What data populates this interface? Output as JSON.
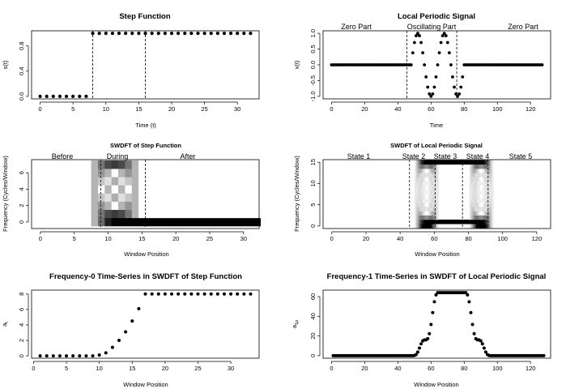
{
  "chart_data": [
    {
      "id": "p1",
      "type": "scatter",
      "title": "Step Function",
      "xlabel": "Time (t)",
      "ylabel": "s(t)",
      "xlim": [
        -1.3,
        33.3
      ],
      "ylim": [
        -0.04,
        1.04
      ],
      "xticks": [
        0,
        5,
        10,
        15,
        20,
        25,
        30
      ],
      "yticks": [
        0.0,
        0.4,
        0.8
      ],
      "series": [
        {
          "name": "s(t)",
          "x_start": 0,
          "x_end": 32,
          "step_at": 8,
          "low": 0,
          "high": 1
        }
      ],
      "vlines": [
        8,
        16
      ]
    },
    {
      "id": "p2",
      "type": "scatter",
      "title": "Local Periodic Signal",
      "xlabel": "Time",
      "ylabel": "x(t)",
      "xlim": [
        -5.1,
        132.1
      ],
      "ylim": [
        -1.08,
        1.08
      ],
      "xticks": [
        0,
        20,
        40,
        60,
        80,
        100,
        120
      ],
      "yticks": [
        -1.0,
        -0.5,
        0.0,
        0.5,
        1.0
      ],
      "series": [
        {
          "name": "x(t)",
          "x_start": 0,
          "x_end": 127,
          "osc_start": 48,
          "osc_end": 79,
          "period": 16
        }
      ],
      "vlines": [
        45.5,
        75.5
      ],
      "annotations": [
        {
          "text": "Zero Part",
          "x": 17
        },
        {
          "text": "Oscillating Part",
          "x": 62
        },
        {
          "text": "Zero Part",
          "x": 114
        }
      ]
    },
    {
      "id": "p3",
      "type": "heatmap",
      "title": "SWDFT of Step Function",
      "xlabel": "Window Position",
      "ylabel": "Frequency (Cycles/Window)",
      "xlim": [
        -1.3,
        32.3
      ],
      "ylim": [
        -0.8,
        7.6
      ],
      "xticks": [
        0,
        5,
        10,
        15,
        20,
        25,
        30
      ],
      "yticks": [
        0,
        2,
        4,
        6
      ],
      "window_size": 8,
      "n_positions": 33,
      "n_freq": 8,
      "vlines": [
        8.9,
        15.5
      ],
      "annotations": [
        {
          "text": "Before",
          "x": 3.3
        },
        {
          "text": "During",
          "x": 12.2
        },
        {
          "text": "After",
          "x": 23
        }
      ]
    },
    {
      "id": "p4",
      "type": "heatmap",
      "title": "SWDFT of Local Periodic Signal",
      "xlabel": "Window Position",
      "ylabel": "Frequency (Cycles/Window)",
      "xlim": [
        -5.1,
        128.1
      ],
      "ylim": [
        -0.6,
        15.6
      ],
      "xticks": [
        0,
        20,
        40,
        60,
        80,
        100,
        120
      ],
      "yticks": [
        0,
        5,
        10,
        15
      ],
      "window_size": 16,
      "n_positions": 128,
      "n_freq": 16,
      "vlines": [
        45.5,
        60.5,
        76.5,
        91.5
      ],
      "annotations": [
        {
          "text": "State 1",
          "x": 19
        },
        {
          "text": "State 2",
          "x": 50.5
        },
        {
          "text": "State 3",
          "x": 68.5
        },
        {
          "text": "State 4",
          "x": 85
        },
        {
          "text": "State 5",
          "x": 110
        }
      ]
    },
    {
      "id": "p5",
      "type": "scatter",
      "title": "Frequency-0 Time-Series in SWDFT of Step Function",
      "xlabel": "Window Position",
      "ylabel": "a",
      "ylabel_sub": "t",
      "xlim": [
        -0.3,
        34.3
      ],
      "ylim": [
        -0.3,
        8.5
      ],
      "xticks": [
        0,
        5,
        10,
        15,
        20,
        25,
        30
      ],
      "yticks": [
        0,
        2,
        4,
        6,
        8
      ],
      "x": [
        1,
        2,
        3,
        4,
        5,
        6,
        7,
        8,
        9,
        10,
        11,
        12,
        13,
        14,
        15,
        16,
        17,
        18,
        19,
        20,
        21,
        22,
        23,
        24,
        25,
        26,
        27,
        28,
        29,
        30,
        31,
        32,
        33
      ],
      "values": [
        0,
        0,
        0,
        0,
        0,
        0,
        0,
        0,
        0,
        0.1,
        0.4,
        1.1,
        2.0,
        3.1,
        4.5,
        6.1,
        8,
        8,
        8,
        8,
        8,
        8,
        8,
        8,
        8,
        8,
        8,
        8,
        8,
        8,
        8,
        8,
        8
      ]
    },
    {
      "id": "p6",
      "type": "scatter",
      "title": "Frequency-1 Time-Series in SWDFT of Local Periodic Signal",
      "xlabel": "Window Position",
      "ylabel": "a",
      "ylabel_sub": "1p",
      "xlim": [
        -5.1,
        132.1
      ],
      "ylim": [
        -2.6,
        66.6
      ],
      "xticks": [
        0,
        20,
        40,
        60,
        80,
        100,
        120
      ],
      "yticks": [
        0,
        20,
        40,
        60
      ],
      "x_start": 1,
      "x_end": 128,
      "osc_start": 48,
      "osc_end": 79,
      "window_size": 16,
      "peak": 64
    }
  ]
}
